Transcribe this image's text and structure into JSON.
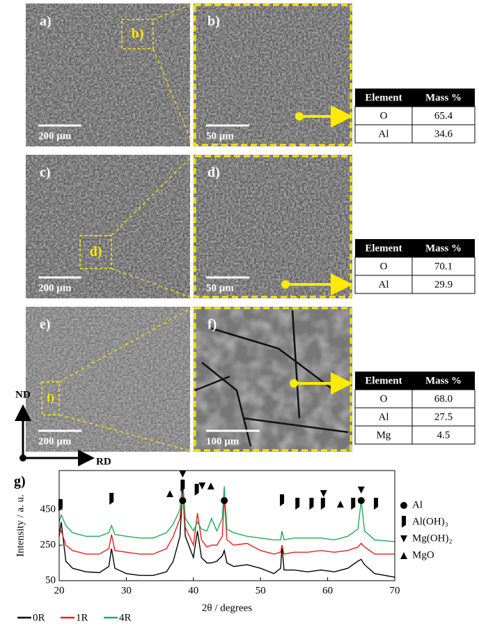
{
  "panels": [
    {
      "label": "a)",
      "scale": "200 µm",
      "inset": "b)"
    },
    {
      "label": "b)",
      "scale": "50 µm"
    },
    {
      "label": "c)",
      "scale": "200 µm",
      "inset": "d)"
    },
    {
      "label": "d)",
      "scale": "50 µm"
    },
    {
      "label": "e)",
      "scale": "200 µm",
      "inset": "f)"
    },
    {
      "label": "f)",
      "scale": "100 µm"
    }
  ],
  "tables": [
    {
      "header": [
        "Element",
        "Mass %"
      ],
      "rows": [
        [
          "O",
          "65.4"
        ],
        [
          "Al",
          "34.6"
        ]
      ]
    },
    {
      "header": [
        "Element",
        "Mass %"
      ],
      "rows": [
        [
          "O",
          "70.1"
        ],
        [
          "Al",
          "29.9"
        ]
      ]
    },
    {
      "header": [
        "Element",
        "Mass %"
      ],
      "rows": [
        [
          "O",
          "68.0"
        ],
        [
          "Al",
          "27.5"
        ],
        [
          "Mg",
          "4.5"
        ]
      ]
    }
  ],
  "directions": {
    "normal": "ND",
    "rolling": "RD"
  },
  "chart_data": {
    "type": "line",
    "panel_label": "g)",
    "xlabel": "2θ / degrees",
    "ylabel": "Intensity / a. u.",
    "x": [
      20,
      20.3,
      21,
      22,
      24,
      26,
      27.4,
      27.8,
      28.3,
      30,
      32,
      34,
      36,
      37,
      38,
      38.4,
      38.8,
      40,
      40.6,
      41.2,
      42,
      42.7,
      43.5,
      44.3,
      44.6,
      45,
      46,
      48,
      50,
      52,
      53,
      53.2,
      53.5,
      55,
      57,
      59,
      61,
      63,
      64.5,
      65,
      65.5,
      67,
      70
    ],
    "series": [
      {
        "name": "0R",
        "color": "#000000",
        "values": [
          300,
          380,
          160,
          120,
          100,
          95,
          130,
          230,
          120,
          90,
          80,
          80,
          100,
          160,
          300,
          560,
          300,
          180,
          330,
          180,
          150,
          150,
          160,
          190,
          220,
          150,
          130,
          140,
          120,
          90,
          120,
          250,
          110,
          110,
          100,
          110,
          100,
          120,
          160,
          170,
          140,
          90,
          70
        ]
      },
      {
        "name": "1R",
        "color": "#e8201c",
        "values": [
          320,
          330,
          250,
          220,
          200,
          200,
          230,
          310,
          220,
          210,
          200,
          200,
          230,
          300,
          400,
          540,
          350,
          250,
          430,
          280,
          240,
          250,
          250,
          300,
          520,
          280,
          250,
          260,
          220,
          200,
          210,
          250,
          200,
          210,
          210,
          220,
          210,
          220,
          240,
          260,
          240,
          200,
          200
        ]
      },
      {
        "name": "4R",
        "color": "#1fae55",
        "values": [
          380,
          420,
          360,
          320,
          300,
          300,
          320,
          360,
          310,
          300,
          290,
          290,
          320,
          370,
          450,
          620,
          400,
          330,
          380,
          340,
          330,
          400,
          330,
          400,
          580,
          340,
          320,
          300,
          290,
          280,
          280,
          330,
          280,
          290,
          290,
          290,
          280,
          300,
          340,
          500,
          330,
          280,
          270
        ]
      }
    ],
    "xlim": [
      20,
      70
    ],
    "ylim": [
      50,
      670
    ],
    "xticks": [
      20,
      30,
      40,
      50,
      60,
      70
    ],
    "yticks": [
      50,
      250,
      450
    ],
    "phases": [
      {
        "name": "Al",
        "marker": "circle",
        "x": [
          38.4,
          44.6,
          65.0
        ],
        "y": [
          501,
          501,
          501
        ]
      },
      {
        "name": "Al(OH)₃",
        "marker": "bar",
        "x": [
          20.2,
          27.8,
          38.4,
          40.5,
          53.2,
          55.5,
          57.6,
          59.3,
          63.8,
          67.2
        ],
        "y": [
          474,
          509,
          583,
          560,
          501,
          481,
          481,
          481,
          481,
          481
        ]
      },
      {
        "name": "Mg(OH)₂",
        "marker": "down-triangle",
        "x": [
          38.4,
          41.3,
          59.4,
          65.0
        ],
        "y": [
          650,
          583,
          540,
          560
        ]
      },
      {
        "name": "MgO",
        "marker": "up-triangle",
        "x": [
          36.5,
          42.6,
          61.9
        ],
        "y": [
          540,
          583,
          481
        ]
      }
    ]
  }
}
